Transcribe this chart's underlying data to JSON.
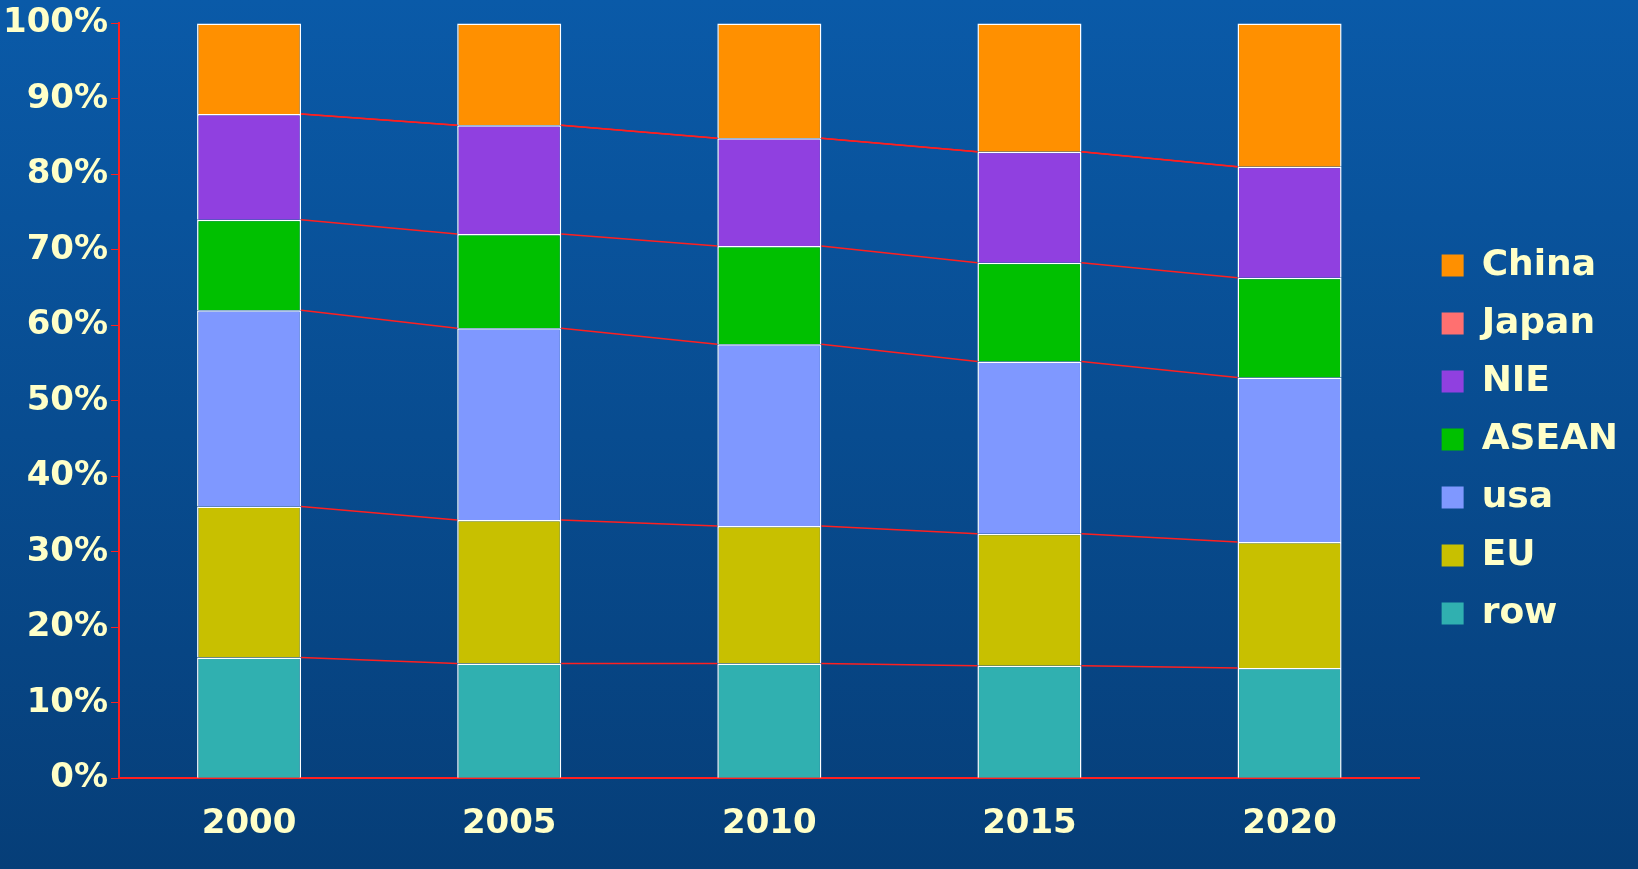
{
  "chart_data": {
    "type": "bar",
    "stacked": true,
    "categories": [
      "2000",
      "2005",
      "2010",
      "2015",
      "2020"
    ],
    "series": [
      {
        "name": "row",
        "color": "#30b0b0",
        "values": [
          16,
          15.2,
          15.2,
          14.9,
          14.6
        ]
      },
      {
        "name": "EU",
        "color": "#c8c000",
        "values": [
          20,
          19.0,
          18.2,
          17.5,
          16.7
        ]
      },
      {
        "name": "usa",
        "color": "#7f98ff",
        "values": [
          26,
          25.4,
          24.1,
          22.8,
          21.8
        ]
      },
      {
        "name": "ASEAN",
        "color": "#00c000",
        "values": [
          12,
          12.5,
          13.0,
          13.1,
          13.2
        ]
      },
      {
        "name": "NIE",
        "color": "#9040e0",
        "values": [
          14,
          14.4,
          14.3,
          14.7,
          14.7
        ]
      },
      {
        "name": "Japan",
        "color": "#ff7070",
        "values": [
          0,
          0,
          0,
          0,
          0
        ]
      },
      {
        "name": "China",
        "color": "#ff9000",
        "values": [
          12,
          13.5,
          15.2,
          17.0,
          19.0
        ]
      }
    ],
    "ylim": [
      0,
      100
    ],
    "yticks": [
      {
        "value": 0,
        "label": "0%"
      },
      {
        "value": 10,
        "label": "10%"
      },
      {
        "value": 20,
        "label": "20%"
      },
      {
        "value": 30,
        "label": "30%"
      },
      {
        "value": 40,
        "label": "40%"
      },
      {
        "value": 50,
        "label": "50%"
      },
      {
        "value": 60,
        "label": "60%"
      },
      {
        "value": 70,
        "label": "70%"
      },
      {
        "value": 80,
        "label": "80%"
      },
      {
        "value": 90,
        "label": "90%"
      },
      {
        "value": 100,
        "label": "100%"
      }
    ],
    "grid": false,
    "legend": "right"
  }
}
